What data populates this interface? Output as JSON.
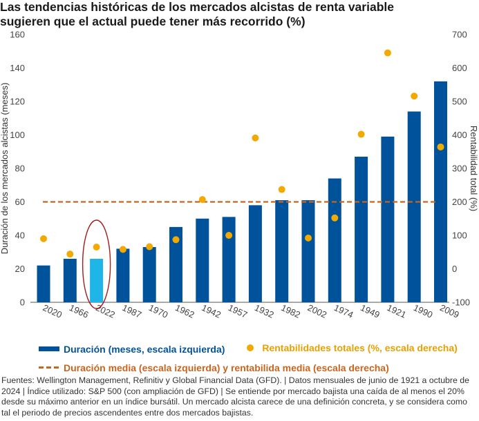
{
  "title_lines": [
    "Las tendencias históricas de los mercados alcistas de renta variable",
    "sugieren que el actual puede tener más recorrido (%)"
  ],
  "legend": {
    "bar": "Duración (meses, escala izquierda)",
    "dot": "Rentabilidades totales (%, escala derecha)",
    "dash": "Duración media (escala izquierda) y rentabilida media (escala derecha)"
  },
  "notes": "Fuentes: Wellington Management, Refinitiv y Global Financial Data (GFD).  |  Datos mensuales de junio de 1921 a octubre de 2024  |  Índice utilizado: S&P 500 (con ampliación de GFD)  |  Se entiende por mercado bajista una caída de al menos el 20% desde su máximo anterior en un índice bursátil. Un mercado alcista carece de una definición concreta, y se considera como tal el periodo de precios ascendentes entre dos mercados bajistas.",
  "colors": {
    "bar": "#00539b",
    "bar_highlight": "#1fb5e8",
    "dot": "#f2a900",
    "average_line": "#c8641e",
    "highlight_ring": "#a51c1c"
  },
  "chart_data": {
    "type": "bar",
    "categories": [
      "2020",
      "1966",
      "2022",
      "1987",
      "1970",
      "1962",
      "1942",
      "1957",
      "1932",
      "1982",
      "2002",
      "1974",
      "1949",
      "1921",
      "1990",
      "2009"
    ],
    "series": [
      {
        "name": "Duración (meses, escala izquierda)",
        "type": "bar",
        "axis": "left",
        "values": [
          22,
          26,
          26,
          32,
          33,
          45,
          50,
          51,
          58,
          61,
          61,
          74,
          87,
          99,
          114,
          132
        ]
      },
      {
        "name": "Rentabilidades totales (%, escala derecha)",
        "type": "scatter",
        "axis": "right",
        "values": [
          90,
          44,
          65,
          58,
          66,
          87,
          207,
          100,
          391,
          237,
          92,
          152,
          402,
          645,
          516,
          364
        ]
      }
    ],
    "average": {
      "left": 60,
      "right": 200
    },
    "highlight_category": "2022",
    "ylabel_left": "Duración de los mercados alcistas (meses)",
    "ylabel_right": "Rentabilidad total (%)",
    "ylim_left": [
      0,
      160
    ],
    "yticks_left": [
      0,
      20,
      40,
      60,
      80,
      100,
      120,
      140,
      160
    ],
    "ylim_right": [
      -100,
      700
    ],
    "yticks_right": [
      -100,
      0,
      100,
      200,
      300,
      400,
      500,
      600,
      700
    ],
    "grid": false
  }
}
